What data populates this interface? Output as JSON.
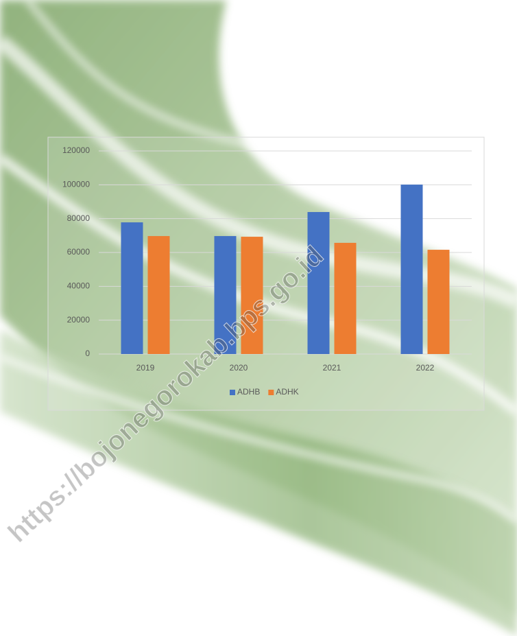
{
  "chart_data": {
    "type": "bar",
    "categories": [
      "2019",
      "2020",
      "2021",
      "2022"
    ],
    "series": [
      {
        "name": "ADHB",
        "color": "#4472c4",
        "values": [
          77800,
          69700,
          83900,
          100100
        ]
      },
      {
        "name": "ADHK",
        "color": "#ed7d31",
        "values": [
          69700,
          69300,
          65700,
          61600
        ]
      }
    ],
    "ylim": [
      0,
      120000
    ],
    "yticks": [
      0,
      20000,
      40000,
      60000,
      80000,
      100000,
      120000
    ],
    "grid": true,
    "legend": "bottom"
  },
  "watermark": "https://bojonegorokab.bps.go.id"
}
